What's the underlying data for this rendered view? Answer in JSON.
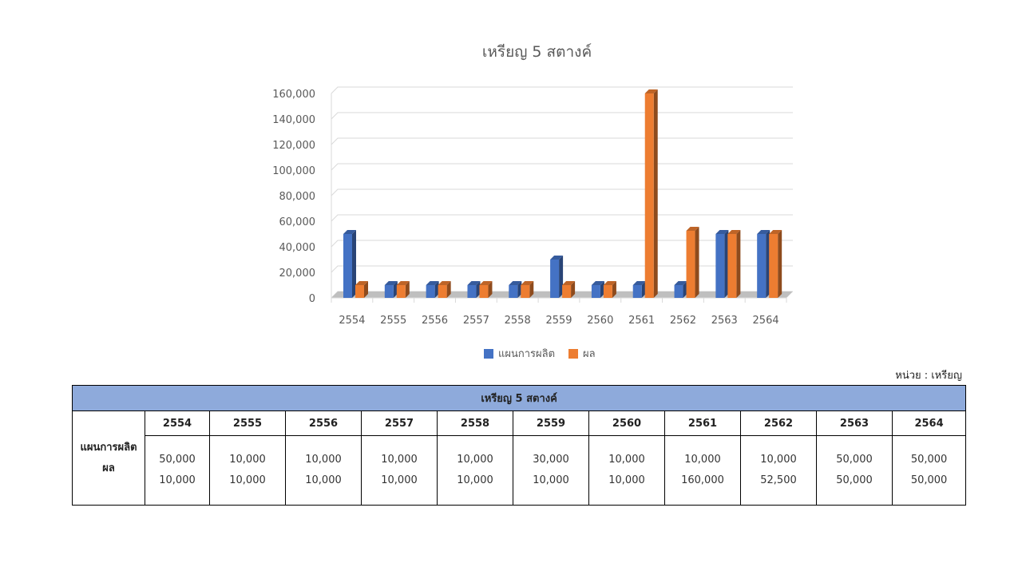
{
  "chart_data": {
    "type": "bar",
    "title": "เหรียญ 5  สตางค์",
    "categories": [
      "2554",
      "2555",
      "2556",
      "2557",
      "2558",
      "2559",
      "2560",
      "2561",
      "2562",
      "2563",
      "2564"
    ],
    "series": [
      {
        "name": "แผนการผลิต",
        "color": "#4472c4",
        "values": [
          50000,
          10000,
          10000,
          10000,
          10000,
          30000,
          10000,
          10000,
          10000,
          50000,
          50000
        ]
      },
      {
        "name": "ผล",
        "color": "#ed7d31",
        "values": [
          10000,
          10000,
          10000,
          10000,
          10000,
          10000,
          10000,
          160000,
          52500,
          50000,
          50000
        ]
      }
    ],
    "ylim": [
      0,
      160000
    ],
    "yticks": [
      "0",
      "20,000",
      "40,000",
      "60,000",
      "80,000",
      "100,000",
      "120,000",
      "140,000",
      "160,000"
    ],
    "grid": true,
    "legend": "bottom",
    "style": "3d-clustered-column"
  },
  "unit_label": "หน่วย : เหรียญ",
  "table": {
    "title": "เหรียญ 5  สตางค์",
    "row_labels": [
      "แผนการผลิต",
      "ผล"
    ],
    "years": [
      "2554",
      "2555",
      "2556",
      "2557",
      "2558",
      "2559",
      "2560",
      "2561",
      "2562",
      "2563",
      "2564"
    ],
    "plan": [
      "50,000",
      "10,000",
      "10,000",
      "10,000",
      "10,000",
      "30,000",
      "10,000",
      "10,000",
      "10,000",
      "50,000",
      "50,000"
    ],
    "actual": [
      "10,000",
      "10,000",
      "10,000",
      "10,000",
      "10,000",
      "10,000",
      "10,000",
      "160,000",
      "52,500",
      "50,000",
      "50,000"
    ]
  }
}
